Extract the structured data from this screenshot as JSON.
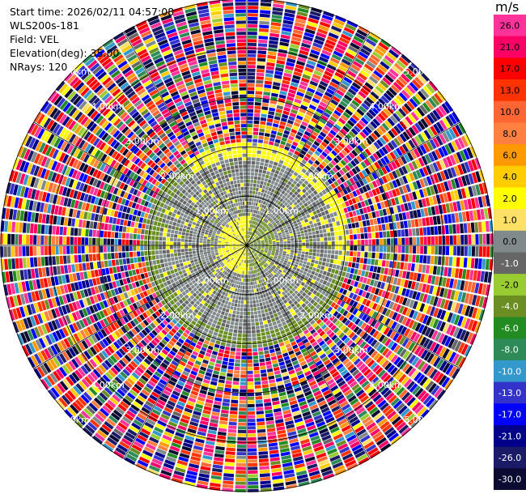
{
  "info": {
    "start_time": "Start time: 2026/02/11 04:57:08",
    "instrument": "WLS200s-181",
    "field": "Field: VEL",
    "elevation": "Elevation(deg): 35.00",
    "nrays": "NRays: 120"
  },
  "colorbar": {
    "unit": "m/s",
    "levels": [
      {
        "label": "26.0",
        "color": "#ff3399"
      },
      {
        "label": "21.0",
        "color": "#ff0066"
      },
      {
        "label": "17.0",
        "color": "#ff0000"
      },
      {
        "label": "13.0",
        "color": "#ff3300"
      },
      {
        "label": "10.0",
        "color": "#ff6633"
      },
      {
        "label": "8.0",
        "color": "#ff8040"
      },
      {
        "label": "6.0",
        "color": "#ff9900"
      },
      {
        "label": "4.0",
        "color": "#ffcc00"
      },
      {
        "label": "2.0",
        "color": "#ffff00"
      },
      {
        "label": "1.0",
        "color": "#ffe066"
      },
      {
        "label": "0.0",
        "color": "#808a8a"
      },
      {
        "label": "-1.0",
        "color": "#666666"
      },
      {
        "label": "-2.0",
        "color": "#99cc33"
      },
      {
        "label": "-4.0",
        "color": "#6b8e23"
      },
      {
        "label": "-6.0",
        "color": "#228b22"
      },
      {
        "label": "-8.0",
        "color": "#2e8b57"
      },
      {
        "label": "-10.0",
        "color": "#3399cc"
      },
      {
        "label": "-13.0",
        "color": "#3333cc"
      },
      {
        "label": "-17.0",
        "color": "#0000ff"
      },
      {
        "label": "-21.0",
        "color": "#00008b"
      },
      {
        "label": "-26.0",
        "color": "#1a1a66"
      },
      {
        "label": "-30.0",
        "color": "#0a0a33"
      }
    ]
  },
  "chart_data": {
    "type": "heatmap",
    "projection": "polar-ppi",
    "field": "VEL",
    "units": "m/s",
    "nrays": 120,
    "ring_labels": [
      "1.00km",
      "2.00km",
      "3.00km",
      "4.00km",
      "5.00km"
    ],
    "ring_distances_km": [
      1,
      2,
      3,
      4,
      5
    ],
    "max_range_km": 5.0,
    "spoke_angles_deg": [
      0,
      30,
      60,
      90,
      120,
      150,
      180,
      210,
      240,
      270,
      300,
      330
    ],
    "regions": [
      {
        "range_km": [
          0,
          0.6
        ],
        "description": "mixed yellow (approaching) and green (receding) velocities",
        "values_m_s": [
          2.0,
          -2.0
        ]
      },
      {
        "range_km": [
          0.6,
          1.8
        ],
        "description": "near-zero velocities, gray",
        "values_m_s": [
          0.0,
          -1.0
        ]
      },
      {
        "range_km": [
          1.8,
          2.1
        ],
        "description": "ring: yellow in north and east, green in south and west",
        "values_m_s": [
          2.0,
          -2.0
        ]
      },
      {
        "range_km": [
          2.1,
          5.0
        ],
        "description": "noise, all velocity levels",
        "values_m_s": [
          -30.0,
          26.0
        ]
      }
    ]
  }
}
